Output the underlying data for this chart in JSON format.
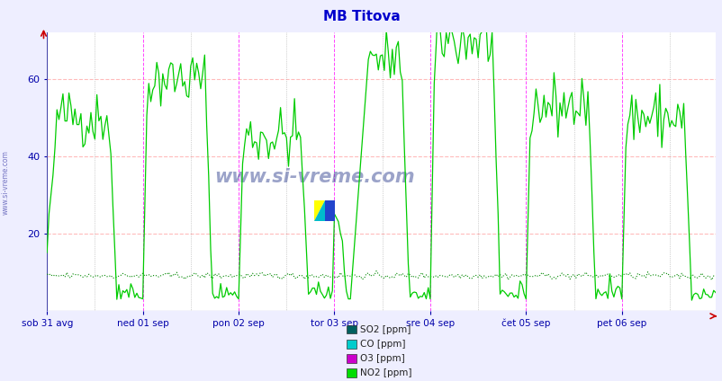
{
  "title": "MB Titova",
  "title_color": "#0000cc",
  "bg_color": "#eeeeff",
  "plot_bg_color": "#ffffff",
  "x_labels": [
    "sob 31 avg",
    "ned 01 sep",
    "pon 02 sep",
    "tor 03 sep",
    "sre 04 sep",
    "čet 05 sep",
    "pet 06 sep"
  ],
  "x_label_color": "#0000aa",
  "y_ticks": [
    20,
    40,
    60
  ],
  "ylim": [
    0,
    72
  ],
  "grid_color_h": "#ffaaaa",
  "vline_day_color": "#ff44ff",
  "vline_sub_color": "#aaaaaa",
  "legend_items": [
    {
      "label": "SO2 [ppm]",
      "color": "#006060"
    },
    {
      "label": "CO [ppm]",
      "color": "#00cccc"
    },
    {
      "label": "O3 [ppm]",
      "color": "#cc00cc"
    },
    {
      "label": "NO2 [ppm]",
      "color": "#00dd00"
    }
  ],
  "so2_flat_value": 9,
  "so2_color": "#008800",
  "no2_color": "#00cc00",
  "watermark": "www.si-vreme.com",
  "watermark_color": "#223388",
  "sidebar_label": "www.si-vreme.com",
  "sidebar_color": "#4444aa",
  "n_points": 336,
  "ppd": 48,
  "figsize": [
    8.03,
    4.24
  ],
  "dpi": 100
}
